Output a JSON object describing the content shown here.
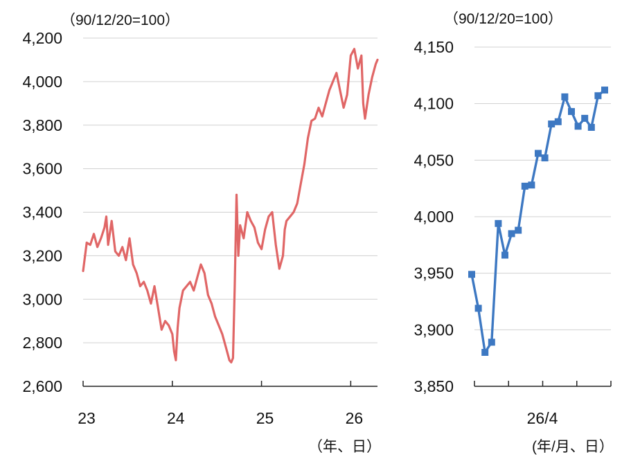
{
  "chart_data": [
    {
      "type": "line",
      "unit_label": "（90/12/20=100）",
      "x_unit_label": "（年、日）",
      "ylim": [
        2600,
        4200
      ],
      "yticks": [
        2600,
        2800,
        3000,
        3200,
        3400,
        3600,
        3800,
        4000,
        4200
      ],
      "ytick_labels": [
        "2,600",
        "2,800",
        "3,000",
        "3,200",
        "3,400",
        "3,600",
        "3,800",
        "4,000",
        "4,200"
      ],
      "xlim": [
        23,
        26.3
      ],
      "xticks": [
        23,
        24,
        25,
        26
      ],
      "xtick_labels": [
        "23",
        "24",
        "25",
        "26"
      ],
      "grid": true,
      "color": "#e06666",
      "x": [
        23.0,
        23.04,
        23.08,
        23.12,
        23.16,
        23.2,
        23.24,
        23.26,
        23.28,
        23.32,
        23.36,
        23.4,
        23.44,
        23.48,
        23.52,
        23.56,
        23.6,
        23.64,
        23.68,
        23.72,
        23.76,
        23.8,
        23.84,
        23.88,
        23.92,
        23.96,
        24.0,
        24.02,
        24.04,
        24.06,
        24.08,
        24.12,
        24.16,
        24.2,
        24.24,
        24.28,
        24.32,
        24.36,
        24.4,
        24.44,
        24.48,
        24.52,
        24.56,
        24.6,
        24.64,
        24.66,
        24.68,
        24.7,
        24.72,
        24.74,
        24.76,
        24.8,
        24.84,
        24.88,
        24.92,
        24.96,
        25.0,
        25.04,
        25.08,
        25.12,
        25.16,
        25.2,
        25.24,
        25.26,
        25.28,
        25.32,
        25.36,
        25.4,
        25.44,
        25.48,
        25.52,
        25.56,
        25.6,
        25.64,
        25.68,
        25.72,
        25.76,
        25.8,
        25.84,
        25.88,
        25.92,
        25.96,
        26.0,
        26.04,
        26.08,
        26.12,
        26.14,
        26.16,
        26.2,
        26.24,
        26.28,
        26.3
      ],
      "y": [
        3130,
        3260,
        3250,
        3300,
        3240,
        3280,
        3330,
        3380,
        3250,
        3360,
        3220,
        3200,
        3240,
        3180,
        3280,
        3160,
        3120,
        3060,
        3080,
        3040,
        2980,
        3060,
        2960,
        2860,
        2900,
        2880,
        2840,
        2760,
        2720,
        2870,
        2960,
        3040,
        3060,
        3080,
        3040,
        3100,
        3160,
        3120,
        3020,
        2980,
        2920,
        2880,
        2840,
        2780,
        2720,
        2710,
        2730,
        3060,
        3480,
        3200,
        3340,
        3280,
        3400,
        3360,
        3330,
        3260,
        3230,
        3320,
        3380,
        3400,
        3250,
        3140,
        3200,
        3320,
        3360,
        3380,
        3400,
        3440,
        3530,
        3620,
        3740,
        3820,
        3830,
        3880,
        3840,
        3900,
        3960,
        4000,
        4040,
        3960,
        3880,
        3940,
        4120,
        4150,
        4060,
        4120,
        3900,
        3830,
        3940,
        4020,
        4080,
        4100
      ]
    },
    {
      "type": "line",
      "unit_label": "（90/12/20=100）",
      "x_unit_label": "(年/月、日）",
      "ylim": [
        3850,
        4150
      ],
      "yticks": [
        3850,
        3900,
        3950,
        4000,
        4050,
        4100,
        4150
      ],
      "ytick_labels": [
        "3,850",
        "3,900",
        "3,950",
        "4,000",
        "4,050",
        "4,100",
        "4,150"
      ],
      "xtick_labels": [
        "26/4"
      ],
      "grid": true,
      "color": "#3d78c2",
      "marker": "square",
      "values": [
        3949,
        3919,
        3880,
        3889,
        3994,
        3966,
        3985,
        3988,
        4027,
        4028,
        4056,
        4052,
        4082,
        4084,
        4106,
        4093,
        4080,
        4087,
        4079,
        4107,
        4112
      ]
    }
  ]
}
